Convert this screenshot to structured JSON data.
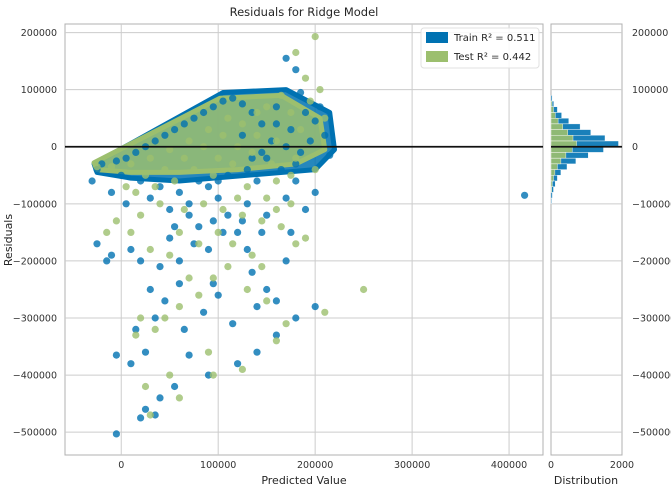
{
  "chart_data": {
    "type": "scatter",
    "title": "Residuals for Ridge Model",
    "xlabel": "Predicted Value",
    "ylabel": "Residuals",
    "xlim": [
      -58000,
      435000
    ],
    "ylim": [
      -540000,
      215000
    ],
    "x_ticks": [
      0,
      100000,
      200000,
      300000,
      400000
    ],
    "x_tick_labels": [
      "0",
      "100000",
      "200000",
      "300000",
      "400000"
    ],
    "y_ticks": [
      200000,
      100000,
      0,
      -100000,
      -200000,
      -300000,
      -400000,
      -500000
    ],
    "y_tick_labels": [
      "200000",
      "100000",
      "0",
      "−100000",
      "−200000",
      "−300000",
      "−400000",
      "−500000"
    ],
    "zero_line": 0,
    "grid": true,
    "legend_position": "top-right",
    "series": [
      {
        "name": "Train",
        "legend_label": "Train R² = 0.511",
        "color": "#0072b2",
        "points": [
          [
            416000,
            -85000
          ],
          [
            170000,
            155000
          ],
          [
            180000,
            135000
          ],
          [
            185000,
            95000
          ],
          [
            205000,
            70000
          ],
          [
            210000,
            20000
          ],
          [
            200000,
            45000
          ],
          [
            190000,
            60000
          ],
          [
            175000,
            30000
          ],
          [
            160000,
            70000
          ],
          [
            150000,
            -20000
          ],
          [
            165000,
            -40000
          ],
          [
            180000,
            -30000
          ],
          [
            200000,
            -80000
          ],
          [
            190000,
            -110000
          ],
          [
            215000,
            -15000
          ],
          [
            140000,
            -60000
          ],
          [
            130000,
            -100000
          ],
          [
            120000,
            -150000
          ],
          [
            110000,
            -120000
          ],
          [
            100000,
            -90000
          ],
          [
            90000,
            -180000
          ],
          [
            80000,
            -140000
          ],
          [
            70000,
            -120000
          ],
          [
            60000,
            -200000
          ],
          [
            50000,
            -160000
          ],
          [
            40000,
            -210000
          ],
          [
            30000,
            -250000
          ],
          [
            20000,
            -200000
          ],
          [
            10000,
            -180000
          ],
          [
            -10000,
            -190000
          ],
          [
            -25000,
            -170000
          ],
          [
            -15000,
            -200000
          ],
          [
            -5000,
            -365000
          ],
          [
            10000,
            -380000
          ],
          [
            -5000,
            -503000
          ],
          [
            20000,
            -475000
          ],
          [
            25000,
            -460000
          ],
          [
            35000,
            -470000
          ],
          [
            40000,
            -440000
          ],
          [
            55000,
            -420000
          ],
          [
            90000,
            -400000
          ],
          [
            70000,
            -365000
          ],
          [
            120000,
            -380000
          ],
          [
            140000,
            -360000
          ],
          [
            160000,
            -330000
          ],
          [
            180000,
            -300000
          ],
          [
            200000,
            -280000
          ],
          [
            150000,
            -250000
          ],
          [
            170000,
            -200000
          ],
          [
            160000,
            -270000
          ],
          [
            140000,
            -280000
          ],
          [
            95000,
            -240000
          ],
          [
            115000,
            -310000
          ],
          [
            85000,
            -290000
          ],
          [
            45000,
            -270000
          ],
          [
            35000,
            -300000
          ],
          [
            15000,
            -320000
          ],
          [
            65000,
            -320000
          ],
          [
            25000,
            -360000
          ],
          [
            100000,
            -60000
          ],
          [
            80000,
            -60000
          ],
          [
            60000,
            -80000
          ],
          [
            40000,
            -70000
          ],
          [
            20000,
            -60000
          ],
          [
            0,
            -50000
          ],
          [
            -20000,
            -30000
          ],
          [
            -30000,
            -60000
          ],
          [
            -10000,
            -80000
          ],
          [
            5000,
            -100000
          ],
          [
            30000,
            -90000
          ],
          [
            50000,
            -110000
          ],
          [
            70000,
            -100000
          ],
          [
            90000,
            -70000
          ],
          [
            110000,
            -50000
          ],
          [
            130000,
            -40000
          ],
          [
            145000,
            -10000
          ],
          [
            155000,
            10000
          ],
          [
            145000,
            40000
          ],
          [
            135000,
            60000
          ],
          [
            125000,
            75000
          ],
          [
            115000,
            85000
          ],
          [
            105000,
            80000
          ],
          [
            95000,
            70000
          ],
          [
            85000,
            60000
          ],
          [
            75000,
            50000
          ],
          [
            65000,
            40000
          ],
          [
            55000,
            30000
          ],
          [
            45000,
            20000
          ],
          [
            35000,
            10000
          ],
          [
            25000,
            0
          ],
          [
            15000,
            -10000
          ],
          [
            5000,
            -20000
          ],
          [
            -5000,
            -25000
          ],
          [
            -25000,
            -40000
          ],
          [
            125000,
            20000
          ],
          [
            135000,
            -20000
          ],
          [
            160000,
            40000
          ],
          [
            170000,
            0
          ],
          [
            185000,
            -10000
          ],
          [
            195000,
            10000
          ],
          [
            180000,
            -60000
          ],
          [
            170000,
            -90000
          ],
          [
            150000,
            -120000
          ],
          [
            125000,
            -130000
          ],
          [
            105000,
            -150000
          ],
          [
            95000,
            -130000
          ],
          [
            75000,
            -170000
          ],
          [
            55000,
            -140000
          ],
          [
            60000,
            -240000
          ],
          [
            100000,
            -260000
          ],
          [
            130000,
            -180000
          ],
          [
            145000,
            -150000
          ],
          [
            175000,
            -150000
          ],
          [
            135000,
            -220000
          ]
        ]
      },
      {
        "name": "Test",
        "legend_label": "Test R² = 0.442",
        "color": "#9cbf6e",
        "points": [
          [
            200000,
            193000
          ],
          [
            180000,
            165000
          ],
          [
            190000,
            120000
          ],
          [
            210000,
            50000
          ],
          [
            205000,
            100000
          ],
          [
            195000,
            80000
          ],
          [
            175000,
            60000
          ],
          [
            165000,
            90000
          ],
          [
            185000,
            30000
          ],
          [
            160000,
            -60000
          ],
          [
            175000,
            -100000
          ],
          [
            190000,
            -160000
          ],
          [
            180000,
            -170000
          ],
          [
            160000,
            -110000
          ],
          [
            150000,
            -90000
          ],
          [
            130000,
            -70000
          ],
          [
            120000,
            -90000
          ],
          [
            100000,
            -150000
          ],
          [
            80000,
            -170000
          ],
          [
            60000,
            -150000
          ],
          [
            40000,
            -100000
          ],
          [
            20000,
            -120000
          ],
          [
            10000,
            -150000
          ],
          [
            30000,
            -180000
          ],
          [
            50000,
            -190000
          ],
          [
            20000,
            -300000
          ],
          [
            15000,
            -330000
          ],
          [
            35000,
            -320000
          ],
          [
            45000,
            -300000
          ],
          [
            60000,
            -280000
          ],
          [
            80000,
            -260000
          ],
          [
            95000,
            -230000
          ],
          [
            110000,
            -210000
          ],
          [
            130000,
            -250000
          ],
          [
            150000,
            -270000
          ],
          [
            170000,
            -310000
          ],
          [
            210000,
            -290000
          ],
          [
            250000,
            -250000
          ],
          [
            160000,
            -340000
          ],
          [
            125000,
            -390000
          ],
          [
            95000,
            -400000
          ],
          [
            90000,
            -360000
          ],
          [
            50000,
            -400000
          ],
          [
            60000,
            -440000
          ],
          [
            30000,
            -470000
          ],
          [
            25000,
            -420000
          ],
          [
            -15000,
            -150000
          ],
          [
            -5000,
            -130000
          ],
          [
            5000,
            -70000
          ],
          [
            25000,
            -50000
          ],
          [
            45000,
            -40000
          ],
          [
            65000,
            -20000
          ],
          [
            85000,
            0
          ],
          [
            105000,
            20000
          ],
          [
            125000,
            40000
          ],
          [
            140000,
            60000
          ],
          [
            150000,
            70000
          ],
          [
            110000,
            50000
          ],
          [
            90000,
            30000
          ],
          [
            70000,
            10000
          ],
          [
            50000,
            -5000
          ],
          [
            30000,
            -20000
          ],
          [
            10000,
            -30000
          ],
          [
            -10000,
            -35000
          ],
          [
            -25000,
            -35000
          ],
          [
            100000,
            -20000
          ],
          [
            120000,
            0
          ],
          [
            140000,
            20000
          ],
          [
            160000,
            10000
          ],
          [
            180000,
            -20000
          ],
          [
            200000,
            -40000
          ],
          [
            175000,
            -50000
          ],
          [
            155000,
            -30000
          ],
          [
            135000,
            -10000
          ],
          [
            115000,
            -30000
          ],
          [
            95000,
            -50000
          ],
          [
            75000,
            -40000
          ],
          [
            55000,
            -60000
          ],
          [
            35000,
            -70000
          ],
          [
            15000,
            -80000
          ],
          [
            65000,
            -110000
          ],
          [
            85000,
            -100000
          ],
          [
            105000,
            -110000
          ],
          [
            125000,
            -120000
          ],
          [
            145000,
            -130000
          ],
          [
            165000,
            -140000
          ],
          [
            115000,
            -170000
          ],
          [
            135000,
            -190000
          ],
          [
            145000,
            -210000
          ],
          [
            70000,
            -230000
          ]
        ]
      }
    ],
    "cloud_polygons": [
      {
        "series": "Train",
        "points": [
          [
            -28000,
            -30000
          ],
          [
            105000,
            95000
          ],
          [
            170000,
            100000
          ],
          [
            215000,
            60000
          ],
          [
            220000,
            -5000
          ],
          [
            200000,
            -40000
          ],
          [
            130000,
            -50000
          ],
          [
            60000,
            -60000
          ],
          [
            10000,
            -55000
          ],
          [
            -25000,
            -45000
          ]
        ]
      },
      {
        "series": "Test",
        "points": [
          [
            -28000,
            -28000
          ],
          [
            102000,
            85000
          ],
          [
            165000,
            90000
          ],
          [
            205000,
            50000
          ],
          [
            210000,
            -5000
          ],
          [
            180000,
            -30000
          ],
          [
            120000,
            -40000
          ],
          [
            60000,
            -45000
          ],
          [
            10000,
            -45000
          ],
          [
            -25000,
            -40000
          ]
        ]
      }
    ],
    "distribution": {
      "xlabel": "Distribution",
      "xlim": [
        0,
        2000
      ],
      "x_ticks": [
        0,
        2000
      ],
      "x_tick_labels": [
        "0",
        "2000"
      ],
      "bin_width": 10000,
      "series": [
        {
          "name": "Train",
          "color": "#0072b2",
          "bins": [
            [
              80000,
              30
            ],
            [
              70000,
              80
            ],
            [
              60000,
              180
            ],
            [
              50000,
              300
            ],
            [
              40000,
              500
            ],
            [
              30000,
              820
            ],
            [
              20000,
              1120
            ],
            [
              10000,
              1520
            ],
            [
              0,
              1900
            ],
            [
              -10000,
              1480
            ],
            [
              -20000,
              1050
            ],
            [
              -30000,
              700
            ],
            [
              -40000,
              450
            ],
            [
              -50000,
              280
            ],
            [
              -60000,
              180
            ],
            [
              -70000,
              120
            ],
            [
              -80000,
              70
            ],
            [
              -90000,
              40
            ],
            [
              -100000,
              20
            ]
          ]
        },
        {
          "name": "Test",
          "color": "#9cbf6e",
          "bins": [
            [
              70000,
              30
            ],
            [
              60000,
              70
            ],
            [
              50000,
              120
            ],
            [
              40000,
              200
            ],
            [
              30000,
              330
            ],
            [
              20000,
              470
            ],
            [
              10000,
              620
            ],
            [
              0,
              720
            ],
            [
              -10000,
              600
            ],
            [
              -20000,
              420
            ],
            [
              -30000,
              280
            ],
            [
              -40000,
              180
            ],
            [
              -50000,
              110
            ],
            [
              -60000,
              70
            ],
            [
              -70000,
              40
            ],
            [
              -80000,
              20
            ]
          ]
        }
      ]
    }
  }
}
